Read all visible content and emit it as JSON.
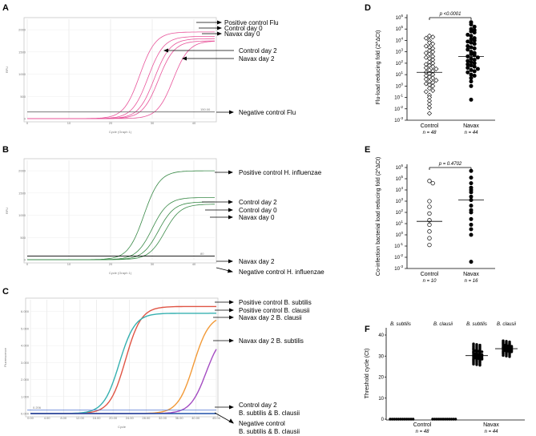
{
  "panels": [
    {
      "letter": "A",
      "type": "qpcr_amplification",
      "xlabel": "Cycle (Graph 1)",
      "ylabel": "RFU",
      "x_ticks": [
        "0",
        "10",
        "20",
        "30",
        "40"
      ],
      "y_ticks": [
        "0",
        "500",
        "1000",
        "1500",
        "2000"
      ],
      "x_range": [
        0,
        45
      ],
      "y_range": [
        0,
        2200
      ],
      "curve_color": "#e8549a",
      "curves": [
        {
          "name": "Positive control Flu",
          "midpoint": 27,
          "plateau": 1950
        },
        {
          "name": "Control day 0",
          "midpoint": 29,
          "plateau": 1850
        },
        {
          "name": "Navax day 0",
          "midpoint": 30.5,
          "plateau": 1800
        },
        {
          "name": "Control day 2",
          "midpoint": 31.5,
          "plateau": 1750
        },
        {
          "name": "Navax day 2",
          "midpoint": 35,
          "plateau": 1750
        }
      ],
      "threshold": {
        "value": 150,
        "label": "150.00"
      },
      "annotations": [
        "Positive control Flu",
        "Control day 0",
        "Navax day 0",
        "Control day 2",
        "Navax day 2",
        "Negative control Flu"
      ]
    },
    {
      "letter": "B",
      "type": "qpcr_amplification",
      "xlabel": "Cycle (Graph 1)",
      "ylabel": "RFU",
      "x_ticks": [
        "0",
        "10",
        "20",
        "30",
        "40"
      ],
      "y_ticks": [
        "0",
        "500",
        "1000",
        "1500",
        "2000"
      ],
      "x_range": [
        0,
        45
      ],
      "y_range": [
        0,
        2200
      ],
      "curve_color": "#3a8a48",
      "curves": [
        {
          "name": "Positive control H. influenzae",
          "midpoint": 28,
          "plateau": 2000
        },
        {
          "name": "Control day 2",
          "midpoint": 30,
          "plateau": 1400
        },
        {
          "name": "Control day 0",
          "midpoint": 31.5,
          "plateau": 1300
        },
        {
          "name": "Navax day 0",
          "midpoint": 33,
          "plateau": 1250
        }
      ],
      "threshold": {
        "value": 80,
        "label": "80"
      },
      "annotations": [
        "Positive control H. influenzae",
        "Control day 2",
        "Control day 0",
        "Navax day 0",
        "Navax day 2",
        "Negative control H. influenzae"
      ]
    },
    {
      "letter": "C",
      "type": "qpcr_amplification",
      "xlabel": "Cycle",
      "ylabel": "Fluorescence",
      "x_ticks": [
        "0.00",
        "4.00",
        "8.00",
        "12.00",
        "16.00",
        "20.00",
        "24.00",
        "28.00",
        "32.00",
        "36.00",
        "40.00",
        "45.00"
      ],
      "y_ticks": [
        "0.000",
        "1.000",
        "2.000",
        "3.000",
        "4.000",
        "5.000",
        "6.000"
      ],
      "x_range": [
        0,
        45
      ],
      "y_range": [
        0,
        6.6
      ],
      "curves": [
        {
          "name": "Positive control B. subtilis",
          "color": "#e05545",
          "midpoint": 23,
          "plateau": 6.3
        },
        {
          "name": "Positive control B. clausii",
          "color": "#36b0b0",
          "midpoint": 21.5,
          "plateau": 5.9
        },
        {
          "name": "Navax day 2 B. clausii",
          "color": "#f29a38",
          "midpoint": 39.5,
          "plateau": 5.8
        },
        {
          "name": "Navax day 2 B. subtilis",
          "color": "#a44cc2",
          "midpoint": 42.5,
          "plateau": 4.8
        },
        {
          "name": "Control day 2",
          "color": "#2050a8",
          "midpoint": 60,
          "plateau": 0.4
        }
      ],
      "threshold": {
        "value": 0.2,
        "label": "0.206"
      },
      "annotations": [
        "Positive control  B. subtilis",
        "Positive control B. clausii",
        "Navax day 2  B. clausii",
        "Navax day 2  B. subtilis",
        "Control day 2",
        "B. subtilis & B. clausii",
        "Negative control",
        "B. subtilis & B. clausii"
      ]
    }
  ],
  "chart_data": [
    {
      "letter": "D",
      "type": "scatter",
      "ylabel": "Flu-load reducing fold (2^ΔCt)",
      "y_scale": "log10",
      "ylim_exp": [
        -3,
        6
      ],
      "y_tick_labels": [
        "10^-3",
        "10^-2",
        "10^-1",
        "10^0",
        "10^1",
        "10^2",
        "10^3",
        "10^4",
        "10^5",
        "10^6"
      ],
      "comparison": "p <0.0001",
      "groups": [
        {
          "label": "Control",
          "n_label": "n = 48",
          "marker": "open-diamond",
          "median_exp": 1.2,
          "values_exp": [
            4.4,
            4.3,
            4.2,
            4.0,
            3.8,
            3.7,
            3.5,
            3.4,
            3.3,
            3.1,
            3.0,
            2.9,
            2.8,
            2.6,
            2.5,
            2.4,
            2.3,
            2.1,
            2.0,
            1.9,
            1.8,
            1.7,
            1.6,
            1.5,
            1.4,
            1.3,
            1.2,
            1.1,
            1.0,
            0.9,
            0.8,
            0.7,
            0.6,
            0.5,
            0.4,
            0.3,
            0.2,
            0.1,
            0.0,
            -0.2,
            -0.4,
            -0.5,
            -0.8,
            -1.0,
            -1.3,
            -1.6,
            -1.9,
            -2.4
          ]
        },
        {
          "label": "Navax",
          "n_label": "n = 44",
          "marker": "filled-circle",
          "median_exp": 2.6,
          "values_exp": [
            5.6,
            5.4,
            5.2,
            5.0,
            4.9,
            4.8,
            4.7,
            4.5,
            4.4,
            4.2,
            4.1,
            4.0,
            3.9,
            3.8,
            3.7,
            3.5,
            3.4,
            3.3,
            3.2,
            3.0,
            2.9,
            2.8,
            2.7,
            2.6,
            2.5,
            2.4,
            2.3,
            2.2,
            2.1,
            2.0,
            1.9,
            1.8,
            1.7,
            1.6,
            1.5,
            1.4,
            1.3,
            1.2,
            1.0,
            0.9,
            0.7,
            0.4,
            0.0,
            -1.2
          ]
        }
      ]
    },
    {
      "letter": "E",
      "type": "scatter",
      "ylabel": "Co-infection bacterial load reducing fold (2^ΔCt)",
      "y_scale": "log10",
      "ylim_exp": [
        -3,
        6
      ],
      "y_tick_labels": [
        "10^-3",
        "10^-2",
        "10^-1",
        "10^0",
        "10^1",
        "10^2",
        "10^3",
        "10^4",
        "10^5",
        "10^6"
      ],
      "comparison": "p = 0.4702",
      "groups": [
        {
          "label": "Control",
          "n_label": "n = 10",
          "marker": "open-circle",
          "median_exp": 1.2,
          "values_exp": [
            4.8,
            4.6,
            3.0,
            2.5,
            1.9,
            1.3,
            0.9,
            0.3,
            -0.3,
            -0.9
          ]
        },
        {
          "label": "Navax",
          "n_label": "n = 16",
          "marker": "filled-circle",
          "median_exp": 3.1,
          "values_exp": [
            5.7,
            5.1,
            4.6,
            4.2,
            4.0,
            3.8,
            3.4,
            3.1,
            2.6,
            2.2,
            2.0,
            1.4,
            0.9,
            0.5,
            0.0,
            -2.4
          ]
        }
      ]
    },
    {
      "letter": "F",
      "type": "scatter",
      "ylabel": "Threshold cycle (Ct)",
      "ylim": [
        0,
        40
      ],
      "y_ticks": [
        "0",
        "10",
        "20",
        "30",
        "40"
      ],
      "group_labels": [
        {
          "label": "Control",
          "n_label": "n = 48"
        },
        {
          "label": "Navax",
          "n_label": "n = 44"
        }
      ],
      "series": [
        {
          "name": "B. subtilis",
          "group": "Control",
          "median": 0,
          "values": [
            0,
            0,
            0,
            0,
            0,
            0,
            0,
            0,
            0,
            0,
            0,
            0
          ]
        },
        {
          "name": "B. clausii",
          "group": "Control",
          "median": 0,
          "values": [
            0,
            0,
            0,
            0,
            0,
            0,
            0,
            0,
            0,
            0,
            0,
            0
          ]
        },
        {
          "name": "B. subtilis",
          "group": "Navax",
          "median": 30.2,
          "values": [
            35.5,
            34.8,
            34.2,
            33.6,
            33.1,
            32.7,
            32.3,
            31.9,
            31.5,
            31.2,
            30.9,
            30.6,
            30.3,
            30.0,
            29.7,
            29.4,
            29.1,
            28.8,
            28.4,
            28.0,
            27.6,
            27.1,
            26.5,
            25.9
          ]
        },
        {
          "name": "B. clausii",
          "group": "Navax",
          "median": 33.5,
          "values": [
            37.0,
            36.4,
            36.0,
            35.6,
            35.2,
            34.9,
            34.6,
            34.3,
            34.0,
            33.7,
            33.5,
            33.2,
            32.9,
            32.6,
            32.3,
            32.0,
            31.6,
            31.2,
            30.7,
            30.0
          ]
        }
      ]
    }
  ]
}
